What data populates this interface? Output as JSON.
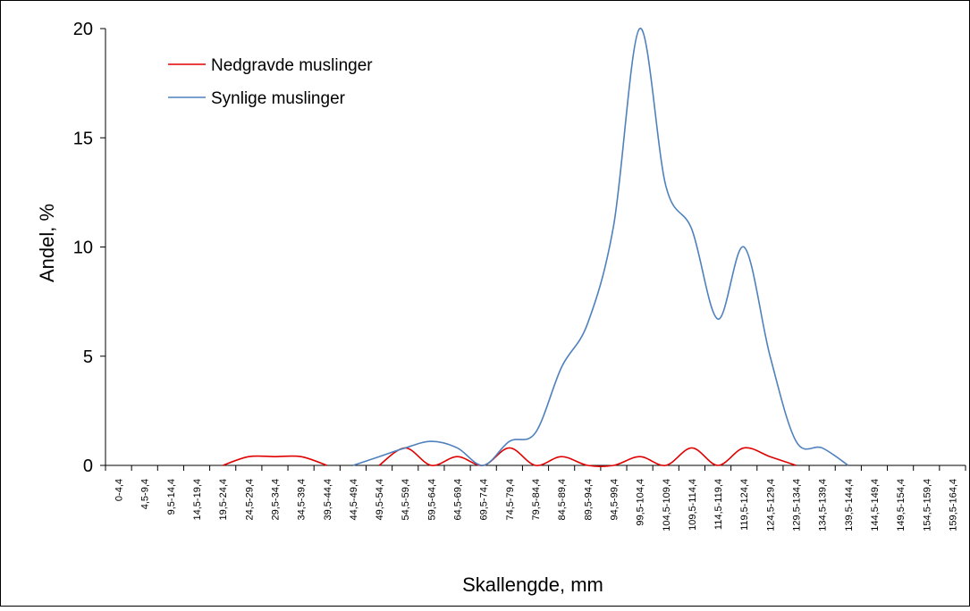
{
  "chart_data": {
    "type": "line",
    "x_label": "Skallengde, mm",
    "y_label": "Andel, %",
    "categories": [
      "0-4,4",
      "4,5-9,4",
      "9,5-14,4",
      "14,5-19,4",
      "19,5-24,4",
      "24,5-29,4",
      "29,5-34,4",
      "34,5-39,4",
      "39,5-44,4",
      "44,5-49,4",
      "49,5-54,4",
      "54,5-59,4",
      "59,5-64,4",
      "64,5-69,4",
      "69,5-74,4",
      "74,5-79,4",
      "79,5-84,4",
      "84,5-89,4",
      "89,5-94,4",
      "94,5-99,4",
      "99,5-104,4",
      "104,5-109,4",
      "109,5-114,4",
      "114,5-119,4",
      "119,5-124,4",
      "124,5-129,4",
      "129,5-134,4",
      "134,5-139,4",
      "139,5-144,4",
      "144,5-149,4",
      "149,5-154,4",
      "154,5-159,4",
      "159,5-164,4"
    ],
    "series": [
      {
        "name": "Nedgravde muslinger",
        "color": "#e00000",
        "values": [
          null,
          null,
          null,
          null,
          0,
          0.4,
          0.4,
          0.4,
          0,
          null,
          0,
          0.8,
          0,
          0.4,
          0,
          0.8,
          0,
          0.4,
          0,
          0,
          0.4,
          0,
          0.8,
          0,
          0.8,
          0.4,
          0,
          null,
          null,
          null,
          null,
          null,
          null
        ]
      },
      {
        "name": "Synlige muslinger",
        "color": "#4f81bd",
        "values": [
          null,
          null,
          null,
          null,
          null,
          null,
          null,
          null,
          null,
          0,
          0.4,
          0.8,
          1.1,
          0.8,
          0,
          1.1,
          1.5,
          4.5,
          6.5,
          11,
          20,
          12.8,
          10.8,
          6.7,
          10,
          5,
          1.1,
          0.8,
          0,
          null,
          null,
          null,
          null
        ]
      }
    ],
    "ylim": [
      0,
      20
    ],
    "yticks": [
      0,
      5,
      10,
      15,
      20
    ],
    "legend": "upper left"
  }
}
